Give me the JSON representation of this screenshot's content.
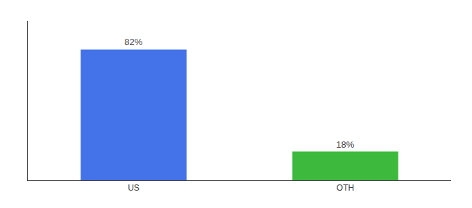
{
  "chart_data": {
    "type": "bar",
    "categories": [
      "US",
      "OTH"
    ],
    "values": [
      82,
      18
    ],
    "value_labels": [
      "82%",
      "18%"
    ],
    "colors": [
      "#4472e8",
      "#3dba3d"
    ],
    "ylim": [
      0,
      100
    ],
    "grid": false,
    "data_labels": true,
    "tick_labels": "x"
  }
}
